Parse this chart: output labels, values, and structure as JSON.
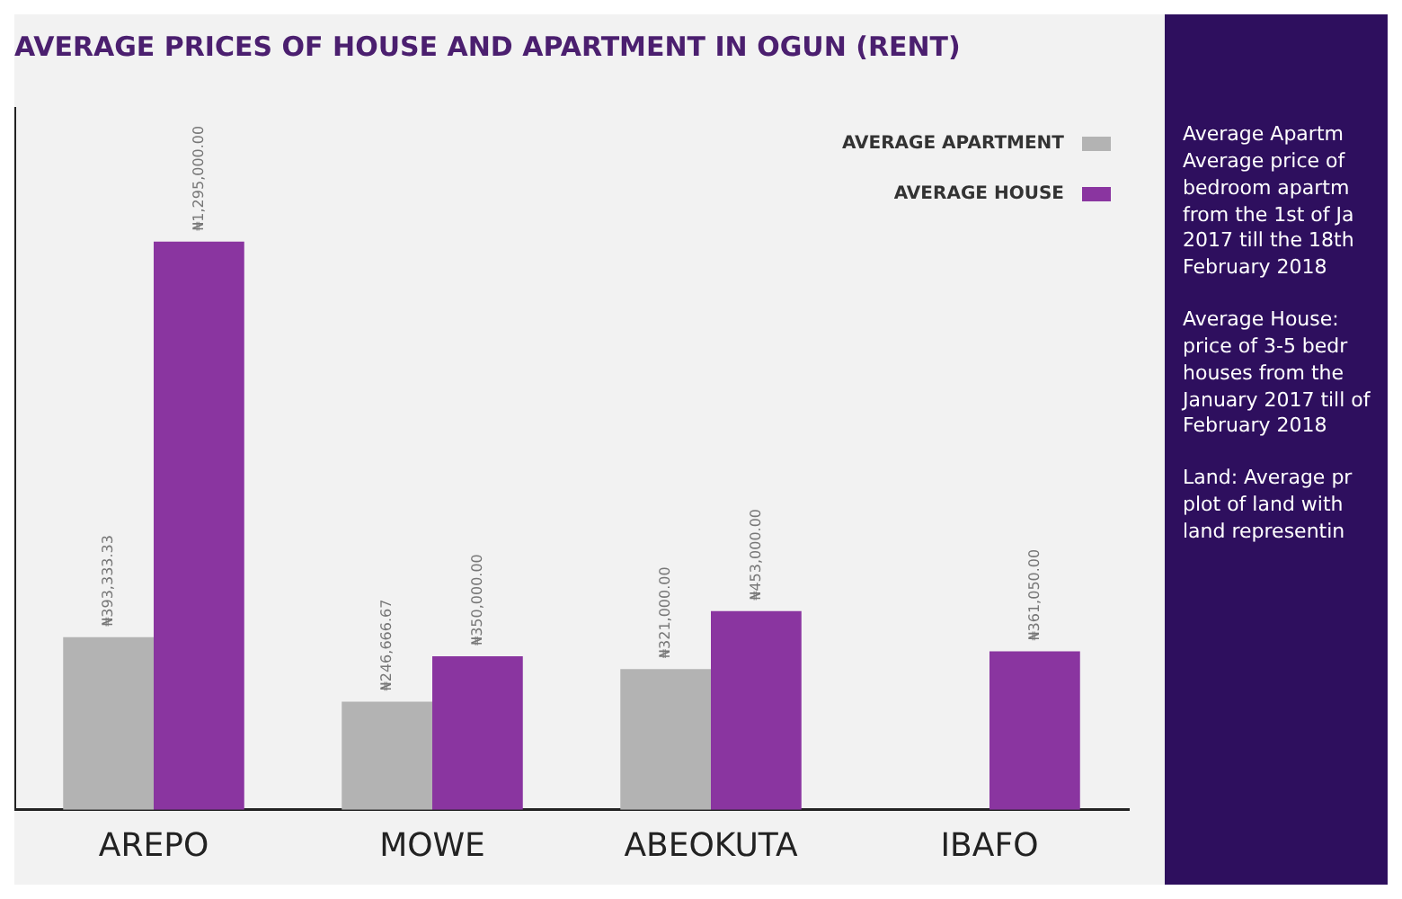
{
  "chart_data": {
    "type": "bar",
    "title": "AVERAGE PRICES OF HOUSE AND APARTMENT IN OGUN (RENT)",
    "categories": [
      "AREPO",
      "MOWE",
      "ABEOKUTA",
      "IBAFO"
    ],
    "series": [
      {
        "name": "AVERAGE APARTMENT",
        "color": "#b3b3b3",
        "values": [
          393333.33,
          246666.67,
          321000,
          null
        ],
        "value_labels": [
          "₦393,333.33",
          "₦246,666.67",
          "₦321,000.00",
          null
        ]
      },
      {
        "name": "AVERAGE HOUSE",
        "color": "#8a35a0",
        "values": [
          1295000,
          350000,
          453000,
          361050
        ],
        "value_labels": [
          "₦1,295,000.00",
          "₦350,000.00",
          "₦453,000.00",
          "₦361,050.00"
        ]
      }
    ],
    "legend": "top right",
    "grid": false,
    "tick_labels": "x",
    "annotations": [
      "Average Apartm Average price of bedroom apartm from the 1st of Ja 2017 till the 18th February 2018",
      "Average House: price of 3-5 bedr houses from the January 2017 till of February 2018",
      "Land: Average pr plot of land with land representin"
    ]
  }
}
